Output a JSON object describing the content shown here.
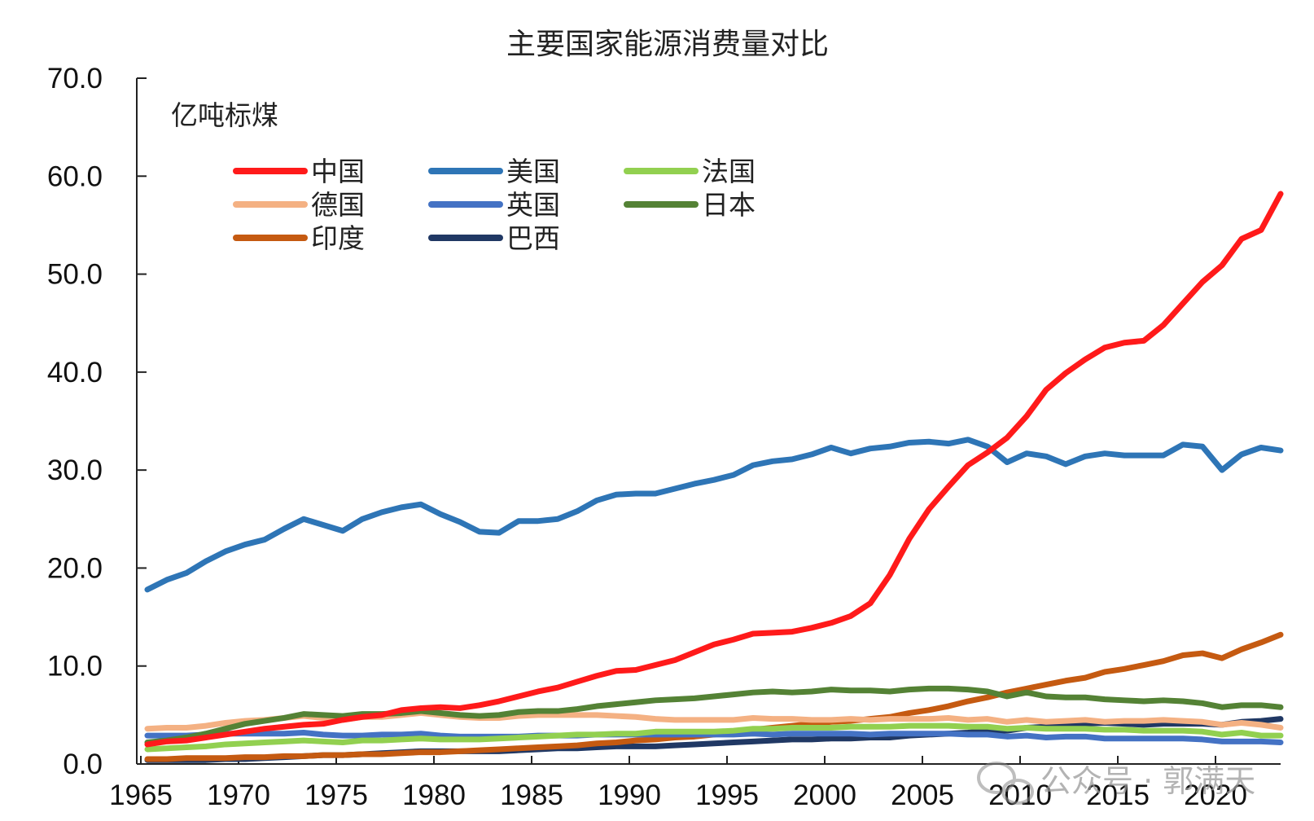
{
  "chart_data": {
    "type": "line",
    "title": "主要国家能源消费量对比",
    "ylabel": "亿吨标煤",
    "ylim": [
      0,
      70
    ],
    "xlim": [
      1965,
      2023
    ],
    "y_ticks": [
      "0.0",
      "10.0",
      "20.0",
      "30.0",
      "40.0",
      "50.0",
      "60.0",
      "70.0"
    ],
    "x_ticks": [
      "1965",
      "1970",
      "1975",
      "1980",
      "1985",
      "1990",
      "1995",
      "2000",
      "2005",
      "2010",
      "2015",
      "2020"
    ],
    "legend_position": "top-left",
    "grid": false,
    "years": [
      1965,
      1966,
      1967,
      1968,
      1969,
      1970,
      1971,
      1972,
      1973,
      1974,
      1975,
      1976,
      1977,
      1978,
      1979,
      1980,
      1981,
      1982,
      1983,
      1984,
      1985,
      1986,
      1987,
      1988,
      1989,
      1990,
      1991,
      1992,
      1993,
      1994,
      1995,
      1996,
      1997,
      1998,
      1999,
      2000,
      2001,
      2002,
      2003,
      2004,
      2005,
      2006,
      2007,
      2008,
      2009,
      2010,
      2011,
      2012,
      2013,
      2014,
      2015,
      2016,
      2017,
      2018,
      2019,
      2020,
      2021,
      2022,
      2023
    ],
    "series": [
      {
        "name": "中国",
        "color": "#ff1a1a",
        "values": [
          2.0,
          2.3,
          2.4,
          2.7,
          3.0,
          3.3,
          3.6,
          3.8,
          4.0,
          4.1,
          4.5,
          4.8,
          5.0,
          5.5,
          5.7,
          5.8,
          5.7,
          6.0,
          6.4,
          6.9,
          7.4,
          7.8,
          8.4,
          9.0,
          9.5,
          9.6,
          10.1,
          10.6,
          11.4,
          12.2,
          12.7,
          13.3,
          13.4,
          13.5,
          13.9,
          14.4,
          15.1,
          16.4,
          19.3,
          23.0,
          26.0,
          28.3,
          30.5,
          31.8,
          33.3,
          35.5,
          38.2,
          39.9,
          41.3,
          42.5,
          43.0,
          43.2,
          44.8,
          47.0,
          49.2,
          50.9,
          53.6,
          54.5,
          58.2
        ]
      },
      {
        "name": "美国",
        "color": "#2e75b6",
        "values": [
          17.8,
          18.8,
          19.5,
          20.7,
          21.7,
          22.4,
          22.9,
          24.0,
          25.0,
          24.4,
          23.8,
          25.0,
          25.7,
          26.2,
          26.5,
          25.5,
          24.7,
          23.7,
          23.6,
          24.8,
          24.8,
          25.0,
          25.8,
          26.9,
          27.5,
          27.6,
          27.6,
          28.1,
          28.6,
          29.0,
          29.5,
          30.5,
          30.9,
          31.1,
          31.6,
          32.3,
          31.7,
          32.2,
          32.4,
          32.8,
          32.9,
          32.7,
          33.1,
          32.4,
          30.8,
          31.7,
          31.4,
          30.6,
          31.4,
          31.7,
          31.5,
          31.5,
          31.5,
          32.6,
          32.4,
          30.0,
          31.6,
          32.3,
          32.0
        ]
      },
      {
        "name": "法国",
        "color": "#92d050",
        "values": [
          1.5,
          1.6,
          1.7,
          1.8,
          2.0,
          2.1,
          2.2,
          2.3,
          2.4,
          2.3,
          2.2,
          2.4,
          2.4,
          2.5,
          2.6,
          2.5,
          2.5,
          2.5,
          2.6,
          2.7,
          2.8,
          2.9,
          3.0,
          3.0,
          3.1,
          3.1,
          3.3,
          3.3,
          3.3,
          3.3,
          3.4,
          3.6,
          3.6,
          3.7,
          3.7,
          3.7,
          3.8,
          3.8,
          3.8,
          3.9,
          3.9,
          3.9,
          3.8,
          3.8,
          3.6,
          3.7,
          3.6,
          3.6,
          3.6,
          3.5,
          3.5,
          3.4,
          3.4,
          3.4,
          3.3,
          3.0,
          3.2,
          2.9,
          2.9
        ]
      },
      {
        "name": "德国",
        "color": "#f4b183",
        "values": [
          3.6,
          3.7,
          3.7,
          3.9,
          4.2,
          4.4,
          4.5,
          4.7,
          4.9,
          4.7,
          4.5,
          4.8,
          4.8,
          5.0,
          5.2,
          5.0,
          4.8,
          4.7,
          4.7,
          4.9,
          5.0,
          5.0,
          5.0,
          5.0,
          4.9,
          4.8,
          4.6,
          4.5,
          4.5,
          4.5,
          4.5,
          4.7,
          4.6,
          4.6,
          4.5,
          4.5,
          4.6,
          4.5,
          4.6,
          4.6,
          4.6,
          4.7,
          4.5,
          4.6,
          4.3,
          4.5,
          4.3,
          4.4,
          4.5,
          4.3,
          4.4,
          4.4,
          4.5,
          4.4,
          4.3,
          4.0,
          4.2,
          4.0,
          3.7
        ]
      },
      {
        "name": "英国",
        "color": "#4472c4",
        "values": [
          2.9,
          2.9,
          2.9,
          3.0,
          3.1,
          3.1,
          3.1,
          3.1,
          3.2,
          3.0,
          2.9,
          2.9,
          3.0,
          3.0,
          3.1,
          2.9,
          2.8,
          2.8,
          2.8,
          2.8,
          2.9,
          2.9,
          2.9,
          3.0,
          3.0,
          3.0,
          3.0,
          3.0,
          3.0,
          3.0,
          3.0,
          3.1,
          3.0,
          3.1,
          3.1,
          3.1,
          3.1,
          3.0,
          3.1,
          3.1,
          3.1,
          3.1,
          3.0,
          3.0,
          2.8,
          2.9,
          2.7,
          2.8,
          2.8,
          2.6,
          2.6,
          2.6,
          2.6,
          2.6,
          2.5,
          2.3,
          2.3,
          2.3,
          2.2
        ]
      },
      {
        "name": "日本",
        "color": "#548235",
        "values": [
          2.2,
          2.4,
          2.7,
          3.1,
          3.6,
          4.1,
          4.4,
          4.7,
          5.1,
          5.0,
          4.9,
          5.1,
          5.1,
          5.2,
          5.4,
          5.2,
          5.0,
          4.9,
          5.0,
          5.3,
          5.4,
          5.4,
          5.6,
          5.9,
          6.1,
          6.3,
          6.5,
          6.6,
          6.7,
          6.9,
          7.1,
          7.3,
          7.4,
          7.3,
          7.4,
          7.6,
          7.5,
          7.5,
          7.4,
          7.6,
          7.7,
          7.7,
          7.6,
          7.4,
          6.9,
          7.3,
          6.9,
          6.8,
          6.8,
          6.6,
          6.5,
          6.4,
          6.5,
          6.4,
          6.2,
          5.8,
          6.0,
          6.0,
          5.8
        ]
      },
      {
        "name": "印度",
        "color": "#c55a11",
        "values": [
          0.5,
          0.5,
          0.6,
          0.6,
          0.6,
          0.7,
          0.7,
          0.8,
          0.8,
          0.9,
          0.9,
          1.0,
          1.0,
          1.1,
          1.2,
          1.2,
          1.3,
          1.4,
          1.5,
          1.6,
          1.7,
          1.8,
          1.9,
          2.1,
          2.2,
          2.4,
          2.5,
          2.7,
          2.8,
          3.0,
          3.3,
          3.5,
          3.7,
          3.9,
          4.1,
          4.3,
          4.4,
          4.6,
          4.8,
          5.2,
          5.5,
          5.9,
          6.4,
          6.8,
          7.3,
          7.7,
          8.1,
          8.5,
          8.8,
          9.4,
          9.7,
          10.1,
          10.5,
          11.1,
          11.3,
          10.8,
          11.7,
          12.4,
          13.2
        ]
      },
      {
        "name": "巴西",
        "color": "#203864",
        "values": [
          0.4,
          0.4,
          0.4,
          0.4,
          0.5,
          0.5,
          0.6,
          0.7,
          0.8,
          0.9,
          0.9,
          1.0,
          1.1,
          1.2,
          1.3,
          1.3,
          1.3,
          1.3,
          1.3,
          1.4,
          1.5,
          1.6,
          1.6,
          1.7,
          1.8,
          1.8,
          1.8,
          1.9,
          2.0,
          2.1,
          2.2,
          2.3,
          2.4,
          2.5,
          2.5,
          2.6,
          2.6,
          2.7,
          2.7,
          2.9,
          3.0,
          3.1,
          3.2,
          3.4,
          3.4,
          3.7,
          3.8,
          3.9,
          4.1,
          4.2,
          4.1,
          4.0,
          4.1,
          4.1,
          4.1,
          4.0,
          4.3,
          4.4,
          4.6
        ]
      }
    ]
  },
  "watermark": {
    "text": "公众号 · 郭满天",
    "icon": "wechat-icon"
  }
}
